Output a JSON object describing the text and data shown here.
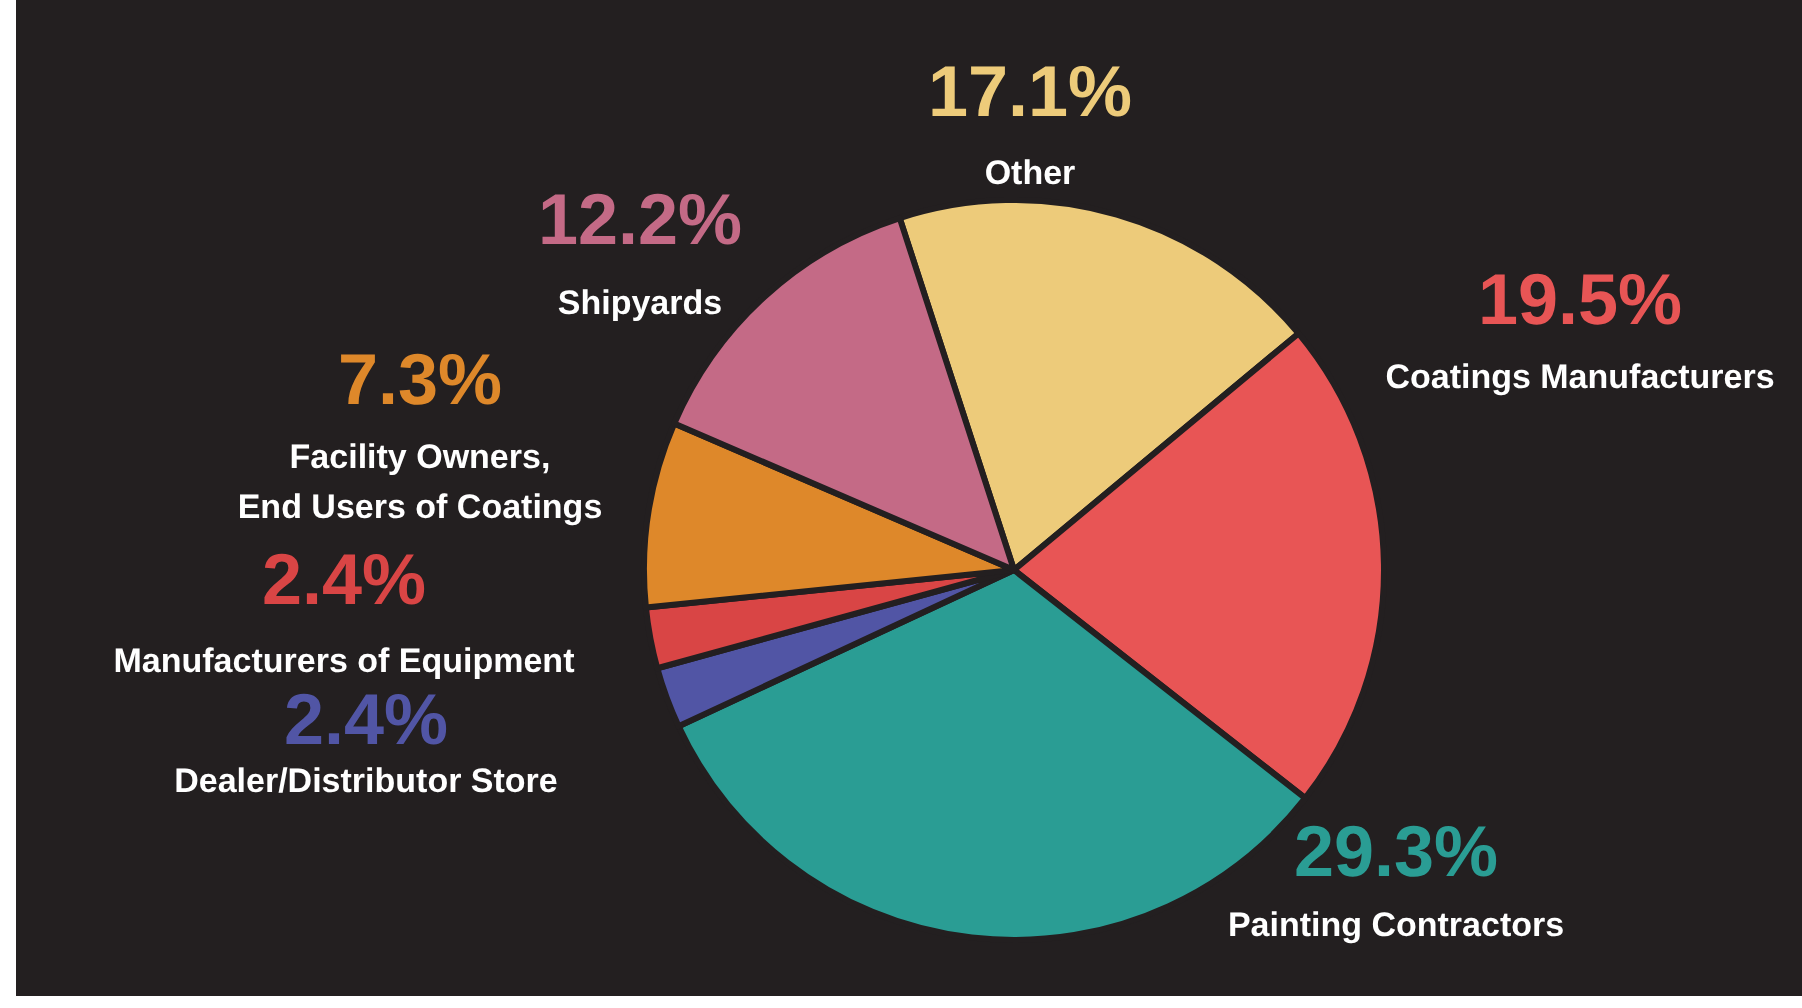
{
  "chart_data": {
    "type": "pie",
    "categories": [
      "Other",
      "Coatings Manufacturers",
      "Painting Contractors",
      "Dealer/Distributor Store",
      "Manufacturers of Equipment",
      "Facility Owners,\nEnd Users of Coatings",
      "Shipyards"
    ],
    "values": [
      17.1,
      19.5,
      29.3,
      2.4,
      2.4,
      7.3,
      12.2
    ],
    "colors": [
      "#edcb7a",
      "#e85555",
      "#2a9d94",
      "#5155a5",
      "#d94545",
      "#de882a",
      "#c46a86"
    ],
    "value_labels": [
      "17.1%",
      "19.5%",
      "29.3%",
      "2.4%",
      "2.4%",
      "7.3%",
      "12.2%"
    ],
    "legend": false
  }
}
